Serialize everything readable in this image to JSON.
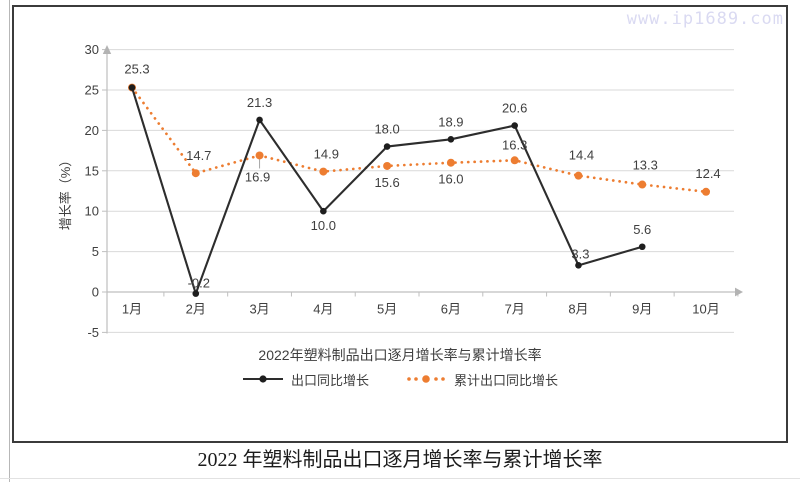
{
  "watermark": "www.ip1689.com",
  "figure_caption": "2022 年塑料制品出口逐月增长率与累计增长率",
  "chart_data": {
    "type": "line",
    "title": "2022年塑料制品出口逐月增长率与累计增长率",
    "ylabel": "增长率（%）",
    "xlabel": "",
    "categories": [
      "1月",
      "2月",
      "3月",
      "4月",
      "5月",
      "6月",
      "7月",
      "8月",
      "9月",
      "10月"
    ],
    "yticks": [
      30,
      25,
      20,
      15,
      10,
      5,
      0,
      -5
    ],
    "ylim": [
      -5,
      30
    ],
    "grid": true,
    "legend_position": "bottom",
    "series": [
      {
        "name": "出口同比增长",
        "style": "solid",
        "color": "#2d2d2d",
        "values": [
          25.3,
          -0.2,
          21.3,
          10.0,
          18.0,
          18.9,
          20.6,
          3.3,
          5.6,
          null
        ]
      },
      {
        "name": "累计出口同比增长",
        "style": "dotted",
        "color": "#ED7D31",
        "values": [
          25.3,
          14.7,
          16.9,
          14.9,
          15.6,
          16.0,
          16.3,
          14.4,
          13.3,
          12.4
        ]
      }
    ],
    "colors": {
      "grid": "#d9d9d9",
      "axis": "#bfbfbf",
      "text": "#3f3f3f"
    }
  }
}
